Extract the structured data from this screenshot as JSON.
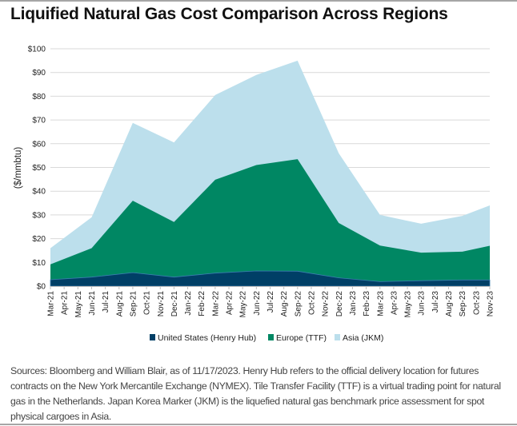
{
  "chart_data": {
    "type": "area",
    "title": "Liquified Natural Gas Cost Comparison Across Regions",
    "ylabel": "($/mmbtu)",
    "xlabel": "",
    "ylim": [
      0,
      100
    ],
    "y_ticks": [
      "$0",
      "$10",
      "$20",
      "$30",
      "$40",
      "$50",
      "$60",
      "$70",
      "$80",
      "$90",
      "$100"
    ],
    "grid": true,
    "legend_position": "bottom",
    "x_labels": [
      "Mar-21",
      "Apr-21",
      "May-21",
      "Jun-21",
      "Jul-21",
      "Aug-21",
      "Sep-21",
      "Oct-21",
      "Nov-21",
      "Dec-21",
      "Jan-22",
      "Feb-22",
      "Mar-22",
      "Apr-22",
      "May-22",
      "Jun-22",
      "Jul-22",
      "Aug-22",
      "Sep-22",
      "Oct-22",
      "Nov-22",
      "Dec-22",
      "Jan-23",
      "Feb-23",
      "Mar-23",
      "Apr-23",
      "May-23",
      "Jun-23",
      "Jul-23",
      "Aug-23",
      "Sep-23",
      "Oct-23",
      "Nov-23"
    ],
    "data_months": [
      "Mar-21",
      "Jun-21",
      "Sep-21",
      "Dec-21",
      "Mar-22",
      "Jun-22",
      "Sep-22",
      "Dec-22",
      "Mar-23",
      "Jun-23",
      "Sep-23",
      "Nov-23"
    ],
    "series": [
      {
        "name": "Asia (JKM)",
        "color": "#bcdfec",
        "values": [
          16,
          29,
          68.8,
          60.5,
          80.5,
          89,
          95,
          56,
          30,
          26.3,
          29.6,
          34
        ]
      },
      {
        "name": "Europe (TTF)",
        "color": "#008763",
        "values": [
          9.2,
          16,
          36,
          27,
          44.8,
          51,
          53.5,
          26.6,
          17.1,
          14.1,
          14.5,
          17
        ]
      },
      {
        "name": "United States (Henry Hub)",
        "color": "#003f66",
        "values": [
          2.7,
          3.8,
          5.7,
          3.8,
          5.5,
          6.4,
          6.3,
          3.5,
          1.9,
          2.3,
          2.6,
          2.6
        ]
      }
    ],
    "legend_order": [
      "United States (Henry Hub)",
      "Europe (TTF)",
      "Asia (JKM)"
    ]
  },
  "footnote": "Sources: Bloomberg and William Blair, as of 11/17/2023. Henry Hub refers to the official delivery location for futures contracts on the New York Mercantile Exchange (NYMEX). Tile Transfer Facility (TTF) is a virtual trading point for natural gas in the Netherlands. Japan Korea Marker (JKM) is the liquefied natural gas benchmark price assessment for spot physical cargoes in Asia."
}
